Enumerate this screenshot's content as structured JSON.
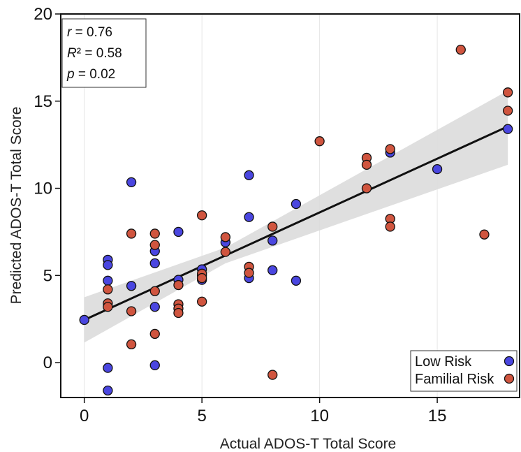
{
  "chart_data": {
    "type": "scatter",
    "title": "",
    "xlabel": "Actual ADOS-T Total Score",
    "ylabel": "Predicted ADOS-T Total Score",
    "xlim": [
      -1,
      18.5
    ],
    "ylim": [
      -2,
      20
    ],
    "xticks": [
      0,
      5,
      10,
      15
    ],
    "yticks": [
      0,
      5,
      10,
      15,
      20
    ],
    "grid": "vertical",
    "legend_position": "bottom-right",
    "stats": {
      "r_value": "0.76",
      "r2_value": "0.58",
      "p_value": "0.02"
    },
    "series": [
      {
        "name": "Low Risk",
        "color": "#4a46e0",
        "points": [
          [
            0,
            2.45
          ],
          [
            1,
            5.9
          ],
          [
            1,
            5.6
          ],
          [
            1,
            4.7
          ],
          [
            1,
            -0.3
          ],
          [
            1,
            -1.6
          ],
          [
            2,
            10.35
          ],
          [
            2,
            4.4
          ],
          [
            3,
            6.4
          ],
          [
            3,
            5.7
          ],
          [
            3,
            3.2
          ],
          [
            3,
            -0.15
          ],
          [
            4,
            7.5
          ],
          [
            4,
            4.75
          ],
          [
            5,
            5.35
          ],
          [
            5,
            5.0
          ],
          [
            5,
            4.75
          ],
          [
            6,
            6.9
          ],
          [
            7,
            10.75
          ],
          [
            7,
            8.35
          ],
          [
            7,
            4.85
          ],
          [
            8,
            7.0
          ],
          [
            8,
            5.3
          ],
          [
            9,
            9.1
          ],
          [
            9,
            4.7
          ],
          [
            13,
            12.05
          ],
          [
            15,
            11.1
          ],
          [
            18,
            13.4
          ]
        ]
      },
      {
        "name": "Familial Risk",
        "color": "#d0553f",
        "points": [
          [
            1,
            4.2
          ],
          [
            1,
            3.4
          ],
          [
            1,
            3.2
          ],
          [
            2,
            7.4
          ],
          [
            2,
            2.95
          ],
          [
            2,
            1.05
          ],
          [
            3,
            7.4
          ],
          [
            3,
            6.75
          ],
          [
            3,
            4.1
          ],
          [
            3,
            1.65
          ],
          [
            4,
            4.45
          ],
          [
            4,
            3.35
          ],
          [
            4,
            3.1
          ],
          [
            4,
            2.85
          ],
          [
            5,
            8.45
          ],
          [
            5,
            5.1
          ],
          [
            5,
            4.85
          ],
          [
            5,
            3.5
          ],
          [
            6,
            7.2
          ],
          [
            6,
            6.35
          ],
          [
            7,
            5.5
          ],
          [
            7,
            5.15
          ],
          [
            8,
            7.8
          ],
          [
            8,
            -0.7
          ],
          [
            10,
            12.7
          ],
          [
            12,
            11.75
          ],
          [
            12,
            11.35
          ],
          [
            12,
            10.0
          ],
          [
            13,
            12.25
          ],
          [
            13,
            8.25
          ],
          [
            13,
            7.8
          ],
          [
            16,
            17.95
          ],
          [
            17,
            7.35
          ],
          [
            18,
            15.5
          ],
          [
            18,
            14.45
          ]
        ]
      }
    ],
    "regression": {
      "x": [
        0,
        18
      ],
      "y": [
        2.45,
        13.55
      ],
      "band_lower": [
        1.15,
        11.35
      ],
      "band_upper": [
        3.75,
        15.6
      ],
      "band_mid_x": 6,
      "band_mid_lower": [
        5.7
      ],
      "band_mid_upper": [
        6.6
      ]
    }
  }
}
